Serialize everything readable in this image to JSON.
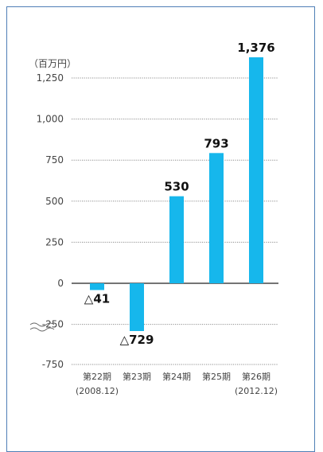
{
  "chart_data": {
    "type": "bar",
    "unit_label": "（百万円）",
    "categories": [
      "第22期",
      "第23期",
      "第24期",
      "第25期",
      "第26期"
    ],
    "sub_labels": [
      "(2008.12)",
      "",
      "",
      "",
      "(2012.12)"
    ],
    "values": [
      -41,
      -729,
      530,
      793,
      1376
    ],
    "value_labels": [
      "△41",
      "△729",
      "530",
      "793",
      "1,376"
    ],
    "y_ticks": [
      1250,
      1000,
      750,
      500,
      250,
      0,
      -250,
      -750
    ],
    "y_tick_labels": [
      "1,250",
      "1,000",
      "750",
      "500",
      "250",
      "0",
      "-250",
      "-750"
    ],
    "y_axis_break": true,
    "grid": true,
    "colors": {
      "bar": "#16b7ec",
      "frame": "#4f7fb6",
      "grid": "#8c8c8c"
    }
  }
}
